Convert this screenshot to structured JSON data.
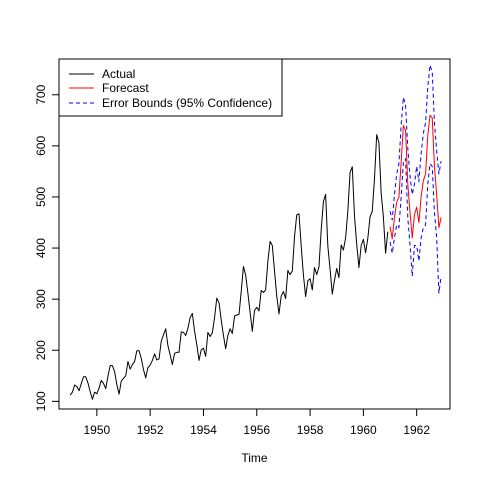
{
  "chart_data": {
    "type": "line",
    "xlabel": "Time",
    "ylabel": "",
    "xlim": [
      1948.58,
      1963.25
    ],
    "ylim": [
      85,
      770
    ],
    "x_ticks": [
      1950,
      1952,
      1954,
      1956,
      1958,
      1960,
      1962
    ],
    "x_tick_labels": [
      "1950",
      "1952",
      "1954",
      "1956",
      "1958",
      "1960",
      "1962"
    ],
    "y_ticks": [
      100,
      200,
      300,
      400,
      500,
      600,
      700
    ],
    "y_tick_labels": [
      "100",
      "200",
      "300",
      "400",
      "500",
      "600",
      "700"
    ],
    "legend_position": "top-left",
    "legend": [
      {
        "label": "Actual",
        "color": "#000000",
        "dash": "solid"
      },
      {
        "label": "Forecast",
        "color": "#ff0000",
        "dash": "solid"
      },
      {
        "label": "Error Bounds (95% Confidence)",
        "color": "#0000ff",
        "dash": "dashed"
      }
    ],
    "actual": {
      "start": 1949.0,
      "frequency": 12,
      "color": "#000000",
      "values": [
        112,
        118,
        132,
        129,
        121,
        135,
        148,
        148,
        136,
        119,
        104,
        118,
        115,
        126,
        141,
        135,
        125,
        149,
        170,
        170,
        158,
        133,
        114,
        140,
        145,
        150,
        178,
        163,
        172,
        178,
        199,
        199,
        184,
        162,
        146,
        166,
        171,
        180,
        193,
        181,
        183,
        218,
        230,
        242,
        209,
        191,
        172,
        194,
        196,
        196,
        236,
        235,
        229,
        243,
        264,
        272,
        237,
        211,
        180,
        201,
        204,
        188,
        235,
        227,
        234,
        264,
        302,
        293,
        259,
        229,
        203,
        229,
        242,
        233,
        267,
        269,
        270,
        315,
        364,
        347,
        312,
        274,
        237,
        278,
        284,
        277,
        317,
        313,
        318,
        374,
        413,
        405,
        355,
        306,
        271,
        306,
        315,
        301,
        356,
        348,
        355,
        422,
        465,
        467,
        404,
        347,
        305,
        336,
        340,
        318,
        362,
        348,
        363,
        435,
        491,
        505,
        404,
        359,
        310,
        337,
        360,
        342,
        406,
        396,
        420,
        472,
        548,
        559,
        463,
        407,
        362,
        405,
        417,
        391,
        419,
        461,
        472,
        535,
        622,
        606,
        508,
        461,
        390,
        432
      ]
    },
    "forecast": {
      "start": 1961.0,
      "frequency": 12,
      "color": "#ff0000",
      "values": [
        442,
        418,
        460,
        490,
        500,
        568,
        640,
        630,
        525,
        470,
        420,
        465,
        480,
        450,
        500,
        532,
        545,
        620,
        660,
        655,
        560,
        505,
        440,
        460
      ]
    },
    "upper_bound": {
      "start": 1961.0,
      "frequency": 12,
      "color": "#0000ff",
      "values": [
        472,
        455,
        505,
        545,
        565,
        640,
        695,
        680,
        595,
        540,
        505,
        525,
        560,
        530,
        585,
        625,
        645,
        715,
        758,
        745,
        645,
        590,
        545,
        570
      ]
    },
    "lower_bound": {
      "start": 1961.0,
      "frequency": 12,
      "color": "#0000ff",
      "values": [
        412,
        390,
        420,
        445,
        440,
        500,
        568,
        575,
        460,
        405,
        345,
        405,
        405,
        375,
        420,
        440,
        445,
        525,
        565,
        560,
        470,
        420,
        312,
        345
      ]
    }
  }
}
